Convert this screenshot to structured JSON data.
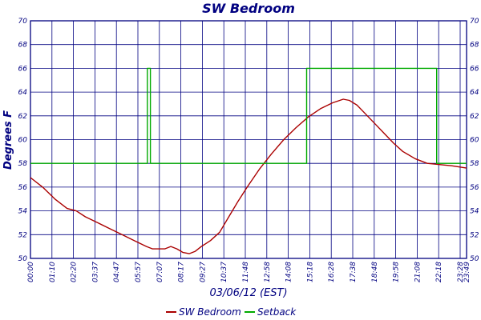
{
  "chart_data": {
    "type": "line",
    "title": "SW Bedroom",
    "xlabel": "03/06/12 (EST)",
    "ylabel": "Degrees F",
    "ylim": [
      50,
      70
    ],
    "yticks": [
      50,
      52,
      54,
      56,
      58,
      60,
      62,
      64,
      66,
      68,
      70
    ],
    "x_tick_labels": [
      "00:00",
      "01:10",
      "02:20",
      "03:37",
      "04:47",
      "05:57",
      "07:07",
      "08:17",
      "09:27",
      "10:37",
      "11:48",
      "12:58",
      "14:08",
      "15:18",
      "16:28",
      "17:38",
      "18:48",
      "19:58",
      "21:08",
      "22:18",
      "23:28",
      "23:49"
    ],
    "xlim_minutes": [
      0,
      1429
    ],
    "grid": true,
    "legend_position": "bottom",
    "series": [
      {
        "name": "SW Bedroom",
        "color": "#aa0000",
        "points": [
          [
            0,
            56.8
          ],
          [
            40,
            56.0
          ],
          [
            80,
            55.0
          ],
          [
            120,
            54.2
          ],
          [
            150,
            54.0
          ],
          [
            180,
            53.5
          ],
          [
            220,
            53.0
          ],
          [
            260,
            52.5
          ],
          [
            300,
            52.0
          ],
          [
            340,
            51.5
          ],
          [
            380,
            51.0
          ],
          [
            400,
            50.8
          ],
          [
            440,
            50.8
          ],
          [
            460,
            51.0
          ],
          [
            480,
            50.8
          ],
          [
            500,
            50.5
          ],
          [
            520,
            50.4
          ],
          [
            540,
            50.6
          ],
          [
            560,
            51.0
          ],
          [
            590,
            51.5
          ],
          [
            620,
            52.2
          ],
          [
            650,
            53.5
          ],
          [
            680,
            54.8
          ],
          [
            710,
            56.0
          ],
          [
            750,
            57.5
          ],
          [
            790,
            58.8
          ],
          [
            830,
            60.0
          ],
          [
            870,
            61.0
          ],
          [
            910,
            61.9
          ],
          [
            950,
            62.6
          ],
          [
            990,
            63.1
          ],
          [
            1025,
            63.4
          ],
          [
            1045,
            63.3
          ],
          [
            1070,
            62.9
          ],
          [
            1100,
            62.1
          ],
          [
            1130,
            61.3
          ],
          [
            1160,
            60.5
          ],
          [
            1190,
            59.7
          ],
          [
            1220,
            59.0
          ],
          [
            1260,
            58.4
          ],
          [
            1300,
            58.0
          ],
          [
            1340,
            57.9
          ],
          [
            1380,
            57.8
          ],
          [
            1429,
            57.6
          ]
        ]
      },
      {
        "name": "Setback",
        "color": "#00aa00",
        "points": [
          [
            0,
            58
          ],
          [
            383,
            58
          ],
          [
            383,
            66
          ],
          [
            393,
            66
          ],
          [
            393,
            58
          ],
          [
            905,
            58
          ],
          [
            905,
            66
          ],
          [
            1331,
            66
          ],
          [
            1331,
            58
          ],
          [
            1429,
            58
          ]
        ]
      }
    ]
  }
}
